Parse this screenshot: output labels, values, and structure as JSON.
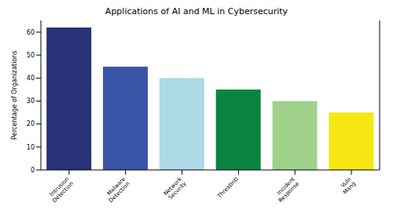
{
  "chart_data": {
    "type": "bar",
    "title": "Applications of AI and ML in Cybersecurity",
    "y_label": "Percentage of Organizations",
    "categories": [
      "Intrusion Detection",
      "Malware Detection",
      "Network Security",
      "ThreatIntl",
      "Incident Response",
      "Vuln Mang"
    ],
    "values": [
      62,
      45,
      40,
      35,
      30,
      25
    ],
    "colors": [
      "#283278",
      "#3a55a8",
      "#add8e6",
      "#0b8443",
      "#9fd18b",
      "#f5e614"
    ],
    "ylim": [
      0,
      65.1
    ],
    "yticks": [
      0,
      10,
      20,
      30,
      40,
      50,
      60
    ],
    "grid": false
  }
}
